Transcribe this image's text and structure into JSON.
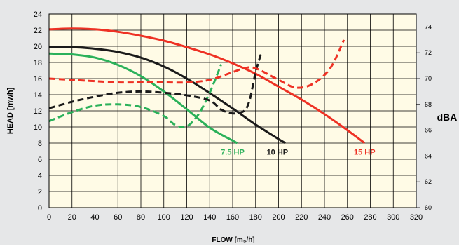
{
  "chart_data": {
    "type": "line",
    "xlabel": "FLOW [m₃/h]",
    "ylabel": "HEAD [mwh]",
    "y2label": "dBA",
    "xlim": [
      0,
      320
    ],
    "ylim": [
      0,
      24
    ],
    "y2lim": [
      60,
      75
    ],
    "grid": true,
    "x_ticks": [
      0,
      20,
      40,
      60,
      80,
      100,
      120,
      140,
      160,
      180,
      200,
      220,
      240,
      260,
      280,
      300,
      320
    ],
    "y_ticks": [
      0,
      2,
      4,
      6,
      8,
      10,
      12,
      14,
      16,
      18,
      20,
      22,
      24
    ],
    "y2_ticks": [
      60,
      62,
      64,
      66,
      68,
      70,
      72,
      74
    ],
    "colors": {
      "7.5 HP": "#2bb15a",
      "10 HP": "#1a1a1a",
      "15 HP": "#ee3124",
      "plot_bg": "#fffbe6"
    },
    "series": [
      {
        "name": "7.5 HP",
        "metric": "head",
        "axis": "left",
        "style": "solid",
        "x": [
          0,
          20,
          40,
          60,
          80,
          100,
          120,
          140,
          160,
          164
        ],
        "y": [
          19.1,
          19.0,
          18.6,
          17.7,
          16.3,
          14.4,
          12.2,
          9.9,
          8.3,
          8.0
        ]
      },
      {
        "name": "10 HP",
        "metric": "head",
        "axis": "left",
        "style": "solid",
        "x": [
          0,
          20,
          40,
          60,
          80,
          100,
          120,
          140,
          160,
          180,
          200,
          206
        ],
        "y": [
          19.9,
          19.9,
          19.7,
          19.3,
          18.6,
          17.5,
          16.0,
          14.2,
          12.3,
          10.3,
          8.5,
          8.0
        ]
      },
      {
        "name": "15 HP",
        "metric": "head",
        "axis": "left",
        "style": "solid",
        "x": [
          0,
          20,
          40,
          60,
          80,
          100,
          120,
          140,
          160,
          180,
          200,
          220,
          240,
          260,
          275
        ],
        "y": [
          22.1,
          22.2,
          22.1,
          21.8,
          21.3,
          20.7,
          19.9,
          19.0,
          17.9,
          16.6,
          15.0,
          13.4,
          11.6,
          9.6,
          8.0
        ]
      },
      {
        "name": "7.5 HP",
        "metric": "noise",
        "axis": "right",
        "style": "dashed",
        "x": [
          0,
          20,
          40,
          60,
          80,
          100,
          110,
          120,
          130,
          140,
          150
        ],
        "y": [
          66.7,
          67.4,
          67.9,
          68.0,
          67.8,
          67.1,
          66.4,
          66.3,
          67.2,
          68.9,
          71.1
        ]
      },
      {
        "name": "10 HP",
        "metric": "noise",
        "axis": "right",
        "style": "dashed",
        "x": [
          0,
          20,
          40,
          60,
          80,
          100,
          120,
          140,
          150,
          160,
          170,
          175,
          180,
          185
        ],
        "y": [
          67.7,
          68.2,
          68.6,
          68.9,
          69.0,
          68.9,
          68.7,
          68.3,
          67.6,
          67.3,
          67.5,
          68.4,
          70.5,
          72.0
        ]
      },
      {
        "name": "15 HP",
        "metric": "noise",
        "axis": "right",
        "style": "dashed",
        "x": [
          0,
          20,
          40,
          60,
          80,
          100,
          120,
          140,
          160,
          170,
          180,
          200,
          215,
          230,
          245,
          257
        ],
        "y": [
          70.0,
          69.9,
          69.8,
          69.7,
          69.7,
          69.7,
          69.7,
          69.9,
          70.5,
          70.8,
          70.8,
          69.9,
          69.3,
          69.6,
          70.8,
          73.0
        ]
      }
    ],
    "series_labels": [
      {
        "text": "7.5 HP",
        "color": "#2bb15a",
        "x": 160,
        "y": 6.9
      },
      {
        "text": "10 HP",
        "color": "#1a1a1a",
        "x": 199,
        "y": 6.9
      },
      {
        "text": "15 HP",
        "color": "#ee3124",
        "x": 275,
        "y": 6.9
      }
    ]
  }
}
